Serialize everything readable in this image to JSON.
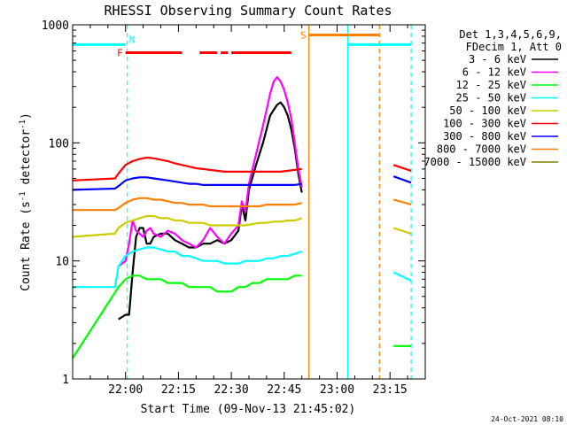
{
  "chart_data": {
    "type": "line",
    "title": "RHESSI Observing Summary Count Rates",
    "xlabel": "Start Time (09-Nov-13 21:45:02)",
    "ylabel_main": "Count Rate (s",
    "ylabel_sup1": "-1",
    "ylabel_mid": " detector",
    "ylabel_sup2": "-1",
    "ylabel_end": ")",
    "yscale": "log",
    "ylim": [
      1,
      1000
    ],
    "xlim_minutes": [
      0,
      100
    ],
    "x_ticks": [
      {
        "m": 15,
        "label": "22:00"
      },
      {
        "m": 30,
        "label": "22:15"
      },
      {
        "m": 45,
        "label": "22:30"
      },
      {
        "m": 60,
        "label": "22:45"
      },
      {
        "m": 75,
        "label": "23:00"
      },
      {
        "m": 90,
        "label": "23:15"
      }
    ],
    "y_ticks": [
      {
        "v": 1,
        "label": "1"
      },
      {
        "v": 10,
        "label": "10"
      },
      {
        "v": 100,
        "label": "100"
      },
      {
        "v": 1000,
        "label": "1000"
      }
    ],
    "legend": {
      "header1": "Det 1,3,4,5,6,9,",
      "header2": "FDecim 1, Att 0",
      "placement": "right"
    },
    "series": [
      {
        "name": "3 - 6 keV",
        "color": "#000000",
        "x": [
          13,
          15,
          16,
          17,
          18,
          19,
          20,
          21,
          22,
          23,
          25,
          27,
          29,
          31,
          33,
          35,
          37,
          39,
          41,
          43,
          45,
          47,
          48,
          49,
          50,
          52,
          54,
          56,
          57,
          58,
          59,
          60,
          61,
          62,
          63,
          64,
          65
        ],
        "y": [
          3.2,
          3.5,
          3.5,
          8,
          16,
          19,
          19,
          14,
          14,
          16,
          17,
          17,
          15,
          14,
          13,
          13,
          14,
          14,
          15,
          14,
          15,
          18,
          30,
          22,
          40,
          65,
          100,
          170,
          190,
          210,
          220,
          200,
          170,
          130,
          90,
          55,
          38
        ]
      },
      {
        "name": "6 - 12 keV",
        "color": "#ff00ff",
        "x": [
          13,
          15,
          16,
          17,
          18,
          19,
          20,
          21,
          22,
          23,
          25,
          27,
          29,
          31,
          33,
          35,
          37,
          39,
          41,
          43,
          45,
          47,
          48,
          49,
          50,
          52,
          54,
          56,
          57,
          58,
          59,
          60,
          61,
          62,
          63,
          64,
          65
        ],
        "y": [
          9,
          10,
          14,
          22,
          18,
          17,
          16,
          18,
          19,
          17,
          16,
          18,
          17,
          15,
          14,
          13,
          15,
          19,
          16,
          14,
          17,
          20,
          32,
          26,
          45,
          80,
          140,
          260,
          330,
          360,
          330,
          280,
          220,
          160,
          100,
          60,
          42
        ]
      },
      {
        "name": "12 - 25 keV",
        "color": "#00ff00",
        "x": [
          0,
          13,
          15,
          17,
          19,
          21,
          23,
          25,
          27,
          29,
          31,
          33,
          35,
          37,
          39,
          41,
          43,
          45,
          47,
          49,
          51,
          53,
          55,
          57,
          59,
          61,
          63,
          65
        ],
        "y": [
          1.5,
          6,
          7,
          7.5,
          7.5,
          7,
          7,
          7,
          6.5,
          6.5,
          6.5,
          6,
          6,
          6,
          6,
          5.5,
          5.5,
          5.5,
          6,
          6,
          6.5,
          6.5,
          7,
          7,
          7,
          7,
          7.5,
          7.5
        ]
      },
      {
        "name": "25 - 50 keV",
        "color": "#00ffff",
        "x": [
          0,
          12,
          13,
          15,
          17,
          19,
          21,
          23,
          25,
          27,
          29,
          31,
          33,
          35,
          37,
          39,
          41,
          43,
          45,
          47,
          49,
          51,
          53,
          55,
          57,
          59,
          61,
          63,
          65
        ],
        "y": [
          6,
          6,
          9,
          11,
          12,
          12.5,
          13,
          13,
          12.5,
          12,
          12,
          11,
          11,
          10.5,
          10,
          10,
          10,
          9.5,
          9.5,
          9.5,
          10,
          10,
          10,
          10.5,
          10.5,
          11,
          11,
          11.5,
          12
        ]
      },
      {
        "name": "50 - 100 keV",
        "color": "#cccc00",
        "x": [
          0,
          12,
          13,
          15,
          17,
          19,
          21,
          23,
          25,
          27,
          29,
          31,
          33,
          35,
          37,
          39,
          41,
          43,
          45,
          47,
          49,
          51,
          53,
          55,
          57,
          59,
          61,
          63,
          65
        ],
        "y": [
          16,
          17,
          19,
          21,
          22,
          23,
          24,
          24,
          23,
          23,
          22,
          22,
          21,
          21,
          21,
          20,
          20,
          20,
          20,
          20,
          20,
          20.5,
          21,
          21,
          21.5,
          21.5,
          22,
          22,
          23
        ]
      },
      {
        "name": "100 - 300 keV",
        "color": "#ff0000",
        "x": [
          0,
          12,
          13,
          15,
          17,
          19,
          21,
          23,
          25,
          27,
          29,
          31,
          33,
          35,
          37,
          39,
          41,
          43,
          45,
          47,
          49,
          51,
          53,
          55,
          57,
          59,
          61,
          63,
          65
        ],
        "y": [
          48,
          50,
          55,
          65,
          70,
          73,
          75,
          74,
          72,
          70,
          67,
          65,
          63,
          61,
          60,
          59,
          58,
          57,
          57,
          57,
          57,
          57,
          57,
          57,
          57,
          57,
          58,
          59,
          60
        ]
      },
      {
        "name": "300 - 800 keV",
        "color": "#0000ff",
        "x": [
          0,
          12,
          13,
          15,
          17,
          19,
          21,
          23,
          25,
          27,
          29,
          31,
          33,
          35,
          37,
          39,
          41,
          43,
          45,
          47,
          49,
          51,
          53,
          55,
          57,
          59,
          61,
          63,
          65
        ],
        "y": [
          40,
          41,
          43,
          48,
          50,
          51,
          51,
          50,
          49,
          48,
          47,
          46,
          45,
          45,
          44,
          44,
          44,
          44,
          44,
          44,
          44,
          44,
          44,
          44,
          44,
          44,
          44,
          44,
          45
        ]
      },
      {
        "name": "800 - 7000 keV",
        "color": "#ff8000",
        "x": [
          0,
          12,
          13,
          15,
          17,
          19,
          21,
          23,
          25,
          27,
          29,
          31,
          33,
          35,
          37,
          39,
          41,
          43,
          45,
          47,
          49,
          51,
          53,
          55,
          57,
          59,
          61,
          63,
          65
        ],
        "y": [
          27,
          27,
          28,
          31,
          33,
          34,
          34,
          33,
          33,
          32,
          31,
          31,
          30,
          30,
          30,
          29,
          29,
          29,
          29,
          29,
          29,
          29,
          29,
          30,
          30,
          30,
          30,
          30,
          31
        ]
      },
      {
        "name": "7000 - 15000 keV",
        "color": "#808000",
        "x": [],
        "y": []
      }
    ],
    "late_segments": [
      {
        "color": "#ff0000",
        "x": [
          91,
          96
        ],
        "y": [
          65,
          58
        ]
      },
      {
        "color": "#0000ff",
        "x": [
          91,
          96
        ],
        "y": [
          52,
          46
        ]
      },
      {
        "color": "#ff8000",
        "x": [
          91,
          96
        ],
        "y": [
          33,
          30
        ]
      },
      {
        "color": "#cccc00",
        "x": [
          91,
          96
        ],
        "y": [
          19,
          17
        ]
      },
      {
        "color": "#00ffff",
        "x": [
          91,
          96
        ],
        "y": [
          8,
          6.8
        ]
      },
      {
        "color": "#00ff00",
        "x": [
          91,
          96
        ],
        "y": [
          1.9,
          1.9
        ]
      }
    ],
    "flag_bars": [
      {
        "label": "N",
        "color": "#00ffff",
        "x": [
          0,
          15
        ],
        "y": 680
      },
      {
        "label": "",
        "color": "#00ffff",
        "x": [
          78,
          96
        ],
        "y": 680
      },
      {
        "label": "F",
        "color": "#ff0000",
        "x": [
          15,
          31
        ],
        "y": 580
      },
      {
        "label": "",
        "color": "#ff0000",
        "x": [
          36,
          41
        ],
        "y": 580
      },
      {
        "label": "",
        "color": "#ff0000",
        "x": [
          42,
          44
        ],
        "y": 580
      },
      {
        "label": "",
        "color": "#ff0000",
        "x": [
          45,
          62
        ],
        "y": 580
      },
      {
        "label": "S",
        "color": "#ff8000",
        "x": [
          67,
          87
        ],
        "y": 820
      }
    ],
    "v_lines": [
      {
        "x": 15.5,
        "color": "#00ffff",
        "dash": true
      },
      {
        "x": 67,
        "color": "#ff8000",
        "dash": false
      },
      {
        "x": 78,
        "color": "#00ffff",
        "dash": false
      },
      {
        "x": 87,
        "color": "#ff8000",
        "dash": true
      },
      {
        "x": 96,
        "color": "#00ffff",
        "dash": true
      }
    ]
  },
  "footer_date": "24-Oct-2021 08:10"
}
